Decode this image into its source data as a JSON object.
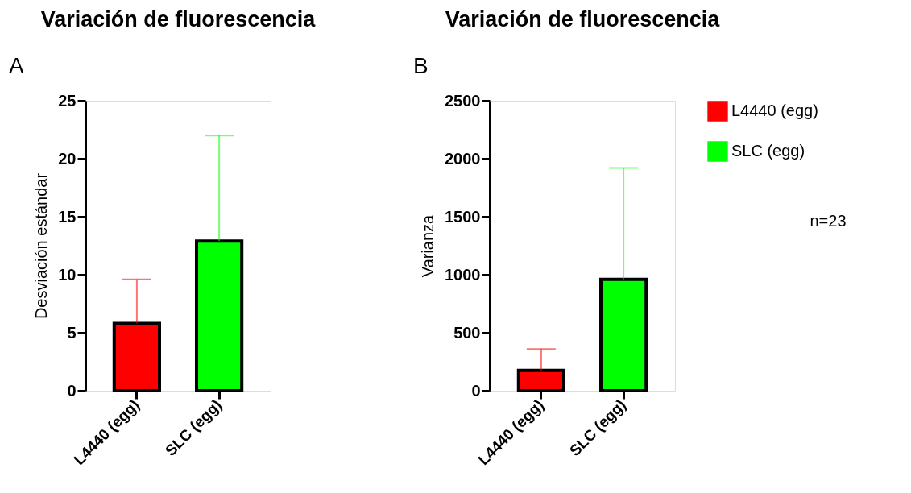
{
  "chart_data": [
    {
      "type": "bar",
      "title": "Variación de fluorescencia",
      "ylabel": "Desviación estándar",
      "categories": [
        "L4440 (egg)",
        "SLC (egg)"
      ],
      "values": [
        5.8,
        12.9
      ],
      "colors": [
        "#ff0000",
        "#00ff00"
      ],
      "errors": [
        [
          5.8,
          9.6
        ],
        [
          12.9,
          22.0
        ]
      ],
      "ylim": [
        0,
        25
      ],
      "yticks": [
        0,
        5,
        10,
        15,
        20,
        25
      ],
      "grid": false,
      "legend": false,
      "annotations": [
        "A"
      ]
    },
    {
      "type": "bar",
      "title": "Variación de fluorescencia",
      "ylabel": "Varianza",
      "categories": [
        "L4440 (egg)",
        "SLC (egg)"
      ],
      "series": [
        {
          "name": "L4440 (egg)",
          "color": "#ff0000",
          "values": [
            175,
            null
          ],
          "errors": [
            [
              175,
              360
            ],
            null
          ]
        },
        {
          "name": "SLC (egg)",
          "color": "#00ff00",
          "values": [
            null,
            960
          ],
          "errors": [
            null,
            [
              960,
              1920
            ]
          ]
        }
      ],
      "ylim": [
        0,
        2500
      ],
      "yticks": [
        0,
        500,
        1000,
        1500,
        2000,
        2500
      ],
      "grid": false,
      "legend": "top right",
      "annotations": [
        "B",
        "n=23"
      ]
    }
  ]
}
